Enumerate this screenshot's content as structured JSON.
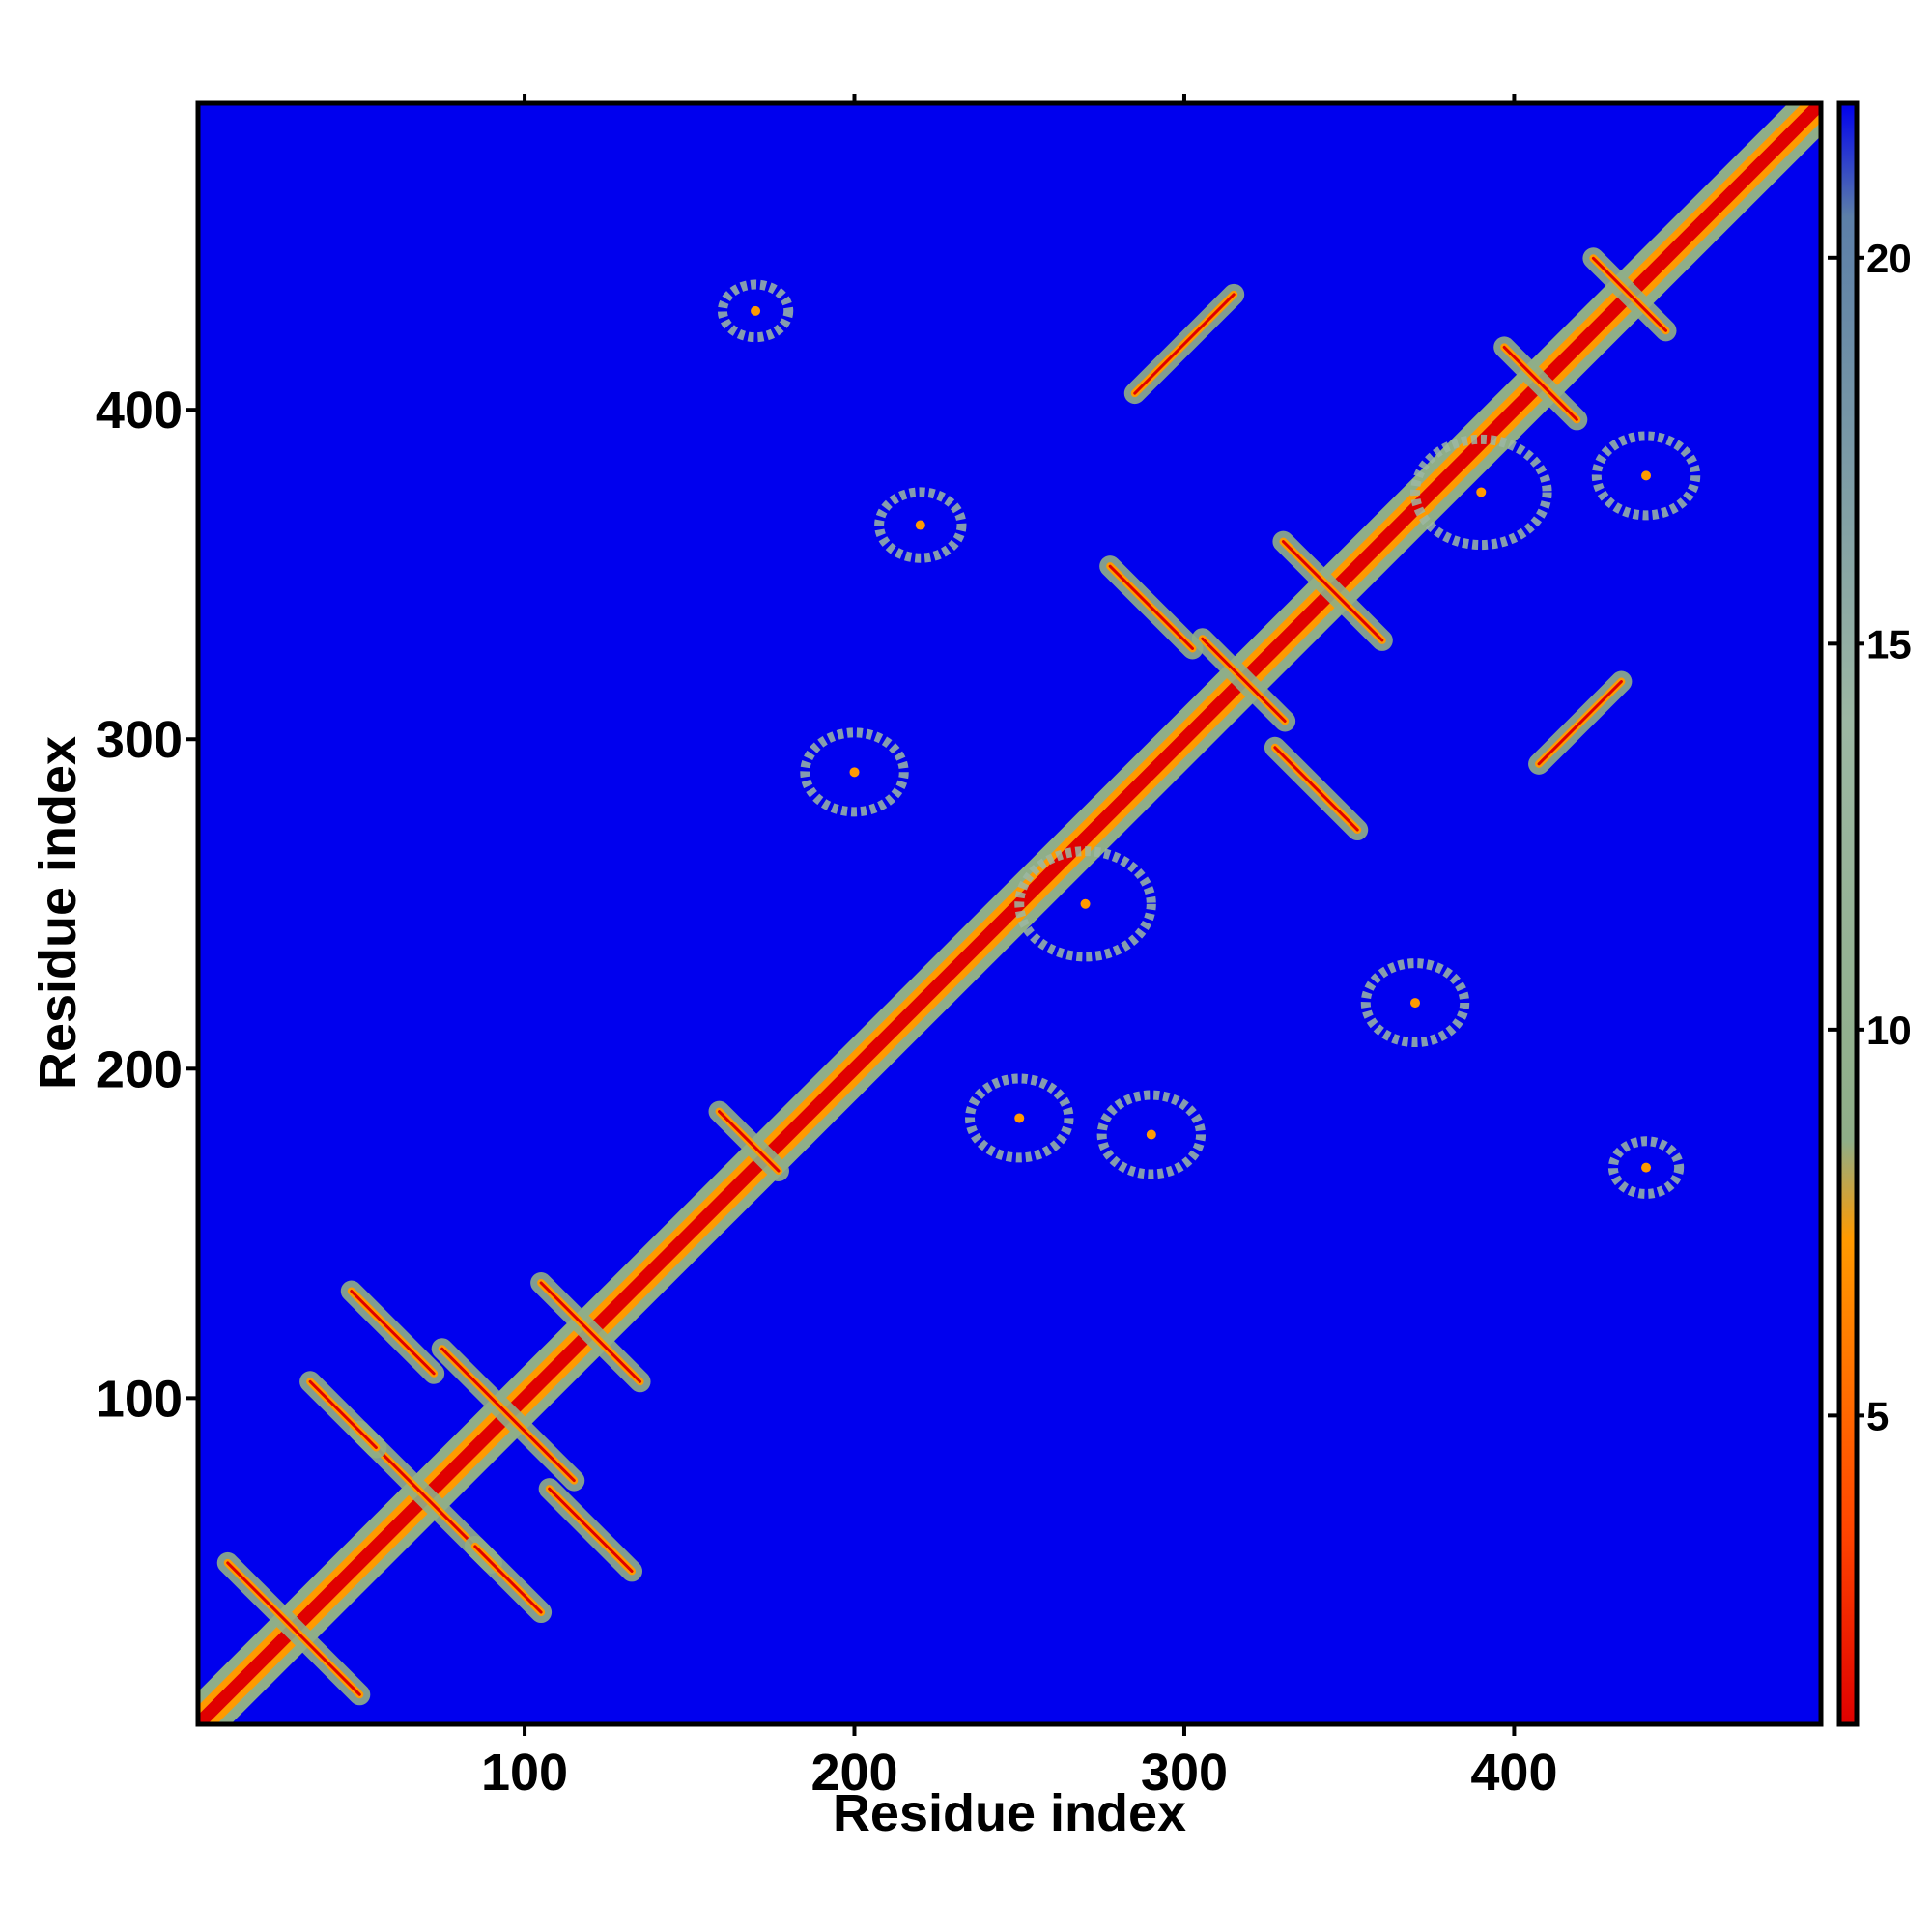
{
  "chart_data": {
    "type": "heatmap",
    "title": "",
    "xlabel": "Residue index",
    "ylabel": "Residue index",
    "xlim": [
      1,
      493
    ],
    "ylim": [
      1,
      493
    ],
    "x_ticks": [
      100,
      200,
      300,
      400
    ],
    "y_ticks": [
      100,
      200,
      300,
      400
    ],
    "colorbar": {
      "ticks": [
        5,
        10,
        15,
        20
      ],
      "range": [
        1,
        22
      ],
      "colors": [
        "#e00000",
        "#ff4500",
        "#ff9a00",
        "#8fae88",
        "#9cb7a3",
        "#5c7fa8",
        "#0000ee"
      ]
    },
    "background_color": "#0000ee",
    "grid": false,
    "legend": "colorbar-right",
    "contact_clusters": [
      {
        "x": 168,
        "y": 178,
        "orientation": "antiparallel",
        "length": 18
      },
      {
        "x": 120,
        "y": 120,
        "orientation": "antiparallel",
        "length": 30
      },
      {
        "x": 95,
        "y": 95,
        "orientation": "antiparallel",
        "length": 40
      },
      {
        "x": 70,
        "y": 70,
        "orientation": "antiparallel",
        "length": 40
      },
      {
        "x": 45,
        "y": 95,
        "orientation": "antiparallel",
        "length": 20
      },
      {
        "x": 95,
        "y": 45,
        "orientation": "antiparallel",
        "length": 20
      },
      {
        "x": 30,
        "y": 30,
        "orientation": "antiparallel",
        "length": 40
      },
      {
        "x": 60,
        "y": 120,
        "orientation": "antiparallel",
        "length": 25
      },
      {
        "x": 120,
        "y": 60,
        "orientation": "antiparallel",
        "length": 25
      },
      {
        "x": 345,
        "y": 345,
        "orientation": "antiparallel",
        "length": 30
      },
      {
        "x": 318,
        "y": 318,
        "orientation": "antiparallel",
        "length": 25
      },
      {
        "x": 408,
        "y": 408,
        "orientation": "antiparallel",
        "length": 22
      },
      {
        "x": 435,
        "y": 435,
        "orientation": "antiparallel",
        "length": 22
      },
      {
        "x": 300,
        "y": 420,
        "orientation": "parallel",
        "length": 30
      },
      {
        "x": 420,
        "y": 305,
        "orientation": "parallel",
        "length": 25
      },
      {
        "x": 290,
        "y": 340,
        "orientation": "antiparallel",
        "length": 25
      },
      {
        "x": 340,
        "y": 285,
        "orientation": "antiparallel",
        "length": 25
      },
      {
        "x": 220,
        "y": 365,
        "orientation": "blob",
        "length": 25
      },
      {
        "x": 200,
        "y": 290,
        "orientation": "blob",
        "length": 30
      },
      {
        "x": 270,
        "y": 250,
        "orientation": "blob",
        "length": 40
      },
      {
        "x": 250,
        "y": 185,
        "orientation": "blob",
        "length": 30
      },
      {
        "x": 290,
        "y": 180,
        "orientation": "blob",
        "length": 30
      },
      {
        "x": 370,
        "y": 220,
        "orientation": "blob",
        "length": 30
      },
      {
        "x": 440,
        "y": 170,
        "orientation": "blob",
        "length": 20
      },
      {
        "x": 170,
        "y": 430,
        "orientation": "blob",
        "length": 20
      },
      {
        "x": 390,
        "y": 375,
        "orientation": "blob",
        "length": 40
      },
      {
        "x": 440,
        "y": 380,
        "orientation": "blob",
        "length": 30
      }
    ]
  }
}
